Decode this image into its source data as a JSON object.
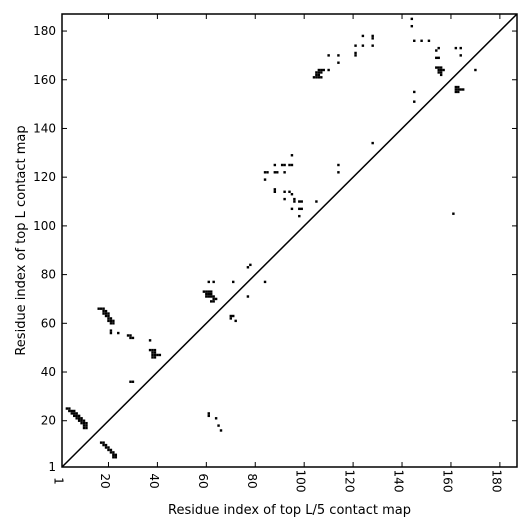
{
  "chart_data": {
    "type": "scatter",
    "title": "",
    "xlabel": "Residue index of top L/5 contact map",
    "ylabel": "Residue index of top L contact map",
    "xlim": [
      1,
      187
    ],
    "ylim": [
      1,
      187
    ],
    "x_ticks": [
      1,
      20,
      40,
      60,
      80,
      100,
      120,
      140,
      160,
      180
    ],
    "y_ticks": [
      1,
      20,
      40,
      60,
      80,
      100,
      120,
      140,
      160,
      180
    ],
    "x_tick_labels": [
      "1",
      "20",
      "40",
      "60",
      "80",
      "100",
      "120",
      "140",
      "160",
      "180"
    ],
    "y_tick_labels": [
      "1",
      "20",
      "40",
      "60",
      "80",
      "100",
      "120",
      "140",
      "160",
      "180"
    ],
    "diagonal": [
      [
        1,
        1
      ],
      [
        187,
        187
      ]
    ],
    "marker_color": "#000000",
    "grid": false,
    "series": [
      {
        "points": [
          [
            144,
            185
          ],
          [
            144,
            182
          ],
          [
            145,
            176
          ],
          [
            148,
            176
          ],
          [
            151,
            176
          ],
          [
            124,
            178
          ],
          [
            128,
            178
          ],
          [
            128,
            177
          ],
          [
            128,
            174
          ],
          [
            124,
            174
          ],
          [
            121,
            174
          ],
          [
            121,
            171
          ],
          [
            121,
            170
          ],
          [
            114,
            170
          ],
          [
            110,
            170
          ],
          [
            114,
            167
          ],
          [
            104,
            161
          ],
          [
            105,
            161
          ],
          [
            106,
            161
          ],
          [
            107,
            161
          ],
          [
            105,
            162
          ],
          [
            106,
            162
          ],
          [
            105,
            163
          ],
          [
            106,
            163
          ],
          [
            107,
            163
          ],
          [
            106,
            164
          ],
          [
            107,
            164
          ],
          [
            108,
            164
          ],
          [
            110,
            164
          ],
          [
            162,
            173
          ],
          [
            164,
            173
          ],
          [
            164,
            170
          ],
          [
            155,
            173
          ],
          [
            154,
            172
          ],
          [
            154,
            169
          ],
          [
            155,
            169
          ],
          [
            154,
            165
          ],
          [
            155,
            165
          ],
          [
            156,
            165
          ],
          [
            155,
            164
          ],
          [
            156,
            164
          ],
          [
            157,
            164
          ],
          [
            155,
            163
          ],
          [
            156,
            163
          ],
          [
            156,
            162
          ],
          [
            170,
            164
          ],
          [
            162,
            157
          ],
          [
            163,
            157
          ],
          [
            162,
            156
          ],
          [
            163,
            156
          ],
          [
            164,
            156
          ],
          [
            165,
            156
          ],
          [
            162,
            155
          ],
          [
            163,
            155
          ],
          [
            145,
            155
          ],
          [
            145,
            151
          ],
          [
            128,
            134
          ],
          [
            161,
            105
          ],
          [
            114,
            125
          ],
          [
            114,
            122
          ],
          [
            95,
            129
          ],
          [
            84,
            122
          ],
          [
            85,
            122
          ],
          [
            88,
            122
          ],
          [
            89,
            122
          ],
          [
            92,
            122
          ],
          [
            84,
            119
          ],
          [
            88,
            125
          ],
          [
            91,
            125
          ],
          [
            92,
            125
          ],
          [
            94,
            125
          ],
          [
            95,
            125
          ],
          [
            88,
            115
          ],
          [
            88,
            114
          ],
          [
            92,
            114
          ],
          [
            94,
            114
          ],
          [
            95,
            113
          ],
          [
            92,
            111
          ],
          [
            96,
            111
          ],
          [
            96,
            110
          ],
          [
            98,
            110
          ],
          [
            99,
            110
          ],
          [
            105,
            110
          ],
          [
            95,
            107
          ],
          [
            98,
            107
          ],
          [
            99,
            107
          ],
          [
            98,
            104
          ],
          [
            84,
            77
          ],
          [
            78,
            84
          ],
          [
            77,
            83
          ],
          [
            77,
            71
          ],
          [
            71,
            77
          ],
          [
            61,
            77
          ],
          [
            63,
            77
          ],
          [
            59,
            73
          ],
          [
            60,
            73
          ],
          [
            61,
            73
          ],
          [
            62,
            73
          ],
          [
            60,
            72
          ],
          [
            61,
            72
          ],
          [
            62,
            72
          ],
          [
            60,
            71
          ],
          [
            61,
            71
          ],
          [
            62,
            71
          ],
          [
            63,
            71
          ],
          [
            63,
            70
          ],
          [
            64,
            70
          ],
          [
            62,
            69
          ],
          [
            63,
            69
          ],
          [
            70,
            63
          ],
          [
            71,
            63
          ],
          [
            70,
            62
          ],
          [
            72,
            61
          ],
          [
            16,
            66
          ],
          [
            17,
            66
          ],
          [
            18,
            66
          ],
          [
            18,
            65
          ],
          [
            19,
            65
          ],
          [
            18,
            64
          ],
          [
            19,
            64
          ],
          [
            20,
            64
          ],
          [
            19,
            63
          ],
          [
            20,
            63
          ],
          [
            20,
            62
          ],
          [
            21,
            62
          ],
          [
            20,
            61
          ],
          [
            21,
            61
          ],
          [
            22,
            61
          ],
          [
            21,
            60
          ],
          [
            22,
            60
          ],
          [
            21,
            57
          ],
          [
            21,
            56
          ],
          [
            24,
            56
          ],
          [
            28,
            55
          ],
          [
            29,
            55
          ],
          [
            29,
            54
          ],
          [
            30,
            54
          ],
          [
            37,
            53
          ],
          [
            37,
            49
          ],
          [
            38,
            49
          ],
          [
            39,
            49
          ],
          [
            38,
            48
          ],
          [
            39,
            48
          ],
          [
            38,
            47
          ],
          [
            39,
            47
          ],
          [
            40,
            47
          ],
          [
            41,
            47
          ],
          [
            38,
            46
          ],
          [
            39,
            46
          ],
          [
            29,
            36
          ],
          [
            30,
            36
          ],
          [
            3,
            25
          ],
          [
            4,
            25
          ],
          [
            4,
            24
          ],
          [
            5,
            24
          ],
          [
            6,
            24
          ],
          [
            5,
            23
          ],
          [
            6,
            23
          ],
          [
            7,
            23
          ],
          [
            6,
            22
          ],
          [
            7,
            22
          ],
          [
            8,
            22
          ],
          [
            7,
            21
          ],
          [
            8,
            21
          ],
          [
            9,
            21
          ],
          [
            8,
            20
          ],
          [
            9,
            20
          ],
          [
            10,
            20
          ],
          [
            9,
            19
          ],
          [
            10,
            19
          ],
          [
            11,
            19
          ],
          [
            10,
            18
          ],
          [
            11,
            18
          ],
          [
            10,
            17
          ],
          [
            11,
            17
          ],
          [
            61,
            23
          ],
          [
            61,
            22
          ],
          [
            64,
            21
          ],
          [
            65,
            18
          ],
          [
            66,
            16
          ],
          [
            17,
            11
          ],
          [
            18,
            11
          ],
          [
            18,
            10
          ],
          [
            19,
            10
          ],
          [
            19,
            9
          ],
          [
            20,
            9
          ],
          [
            20,
            8
          ],
          [
            21,
            8
          ],
          [
            21,
            7
          ],
          [
            22,
            7
          ],
          [
            22,
            6
          ],
          [
            23,
            6
          ],
          [
            22,
            5
          ],
          [
            23,
            5
          ]
        ]
      }
    ]
  }
}
